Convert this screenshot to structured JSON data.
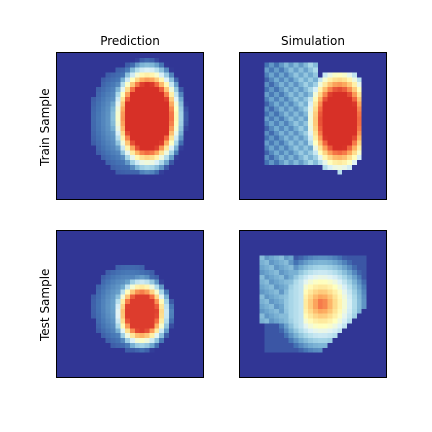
{
  "chart_data": {
    "type": "heatmap",
    "colormap": "RdYlBu_r",
    "column_titles": [
      "Prediction",
      "Simulation"
    ],
    "row_labels": [
      "Train Sample",
      "Test Sample"
    ],
    "axes_ticks": "hidden",
    "panels": [
      {
        "row": "Train Sample",
        "column": "Prediction"
      },
      {
        "row": "Train Sample",
        "column": "Simulation"
      },
      {
        "row": "Test Sample",
        "column": "Prediction"
      },
      {
        "row": "Test Sample",
        "column": "Simulation"
      }
    ]
  }
}
